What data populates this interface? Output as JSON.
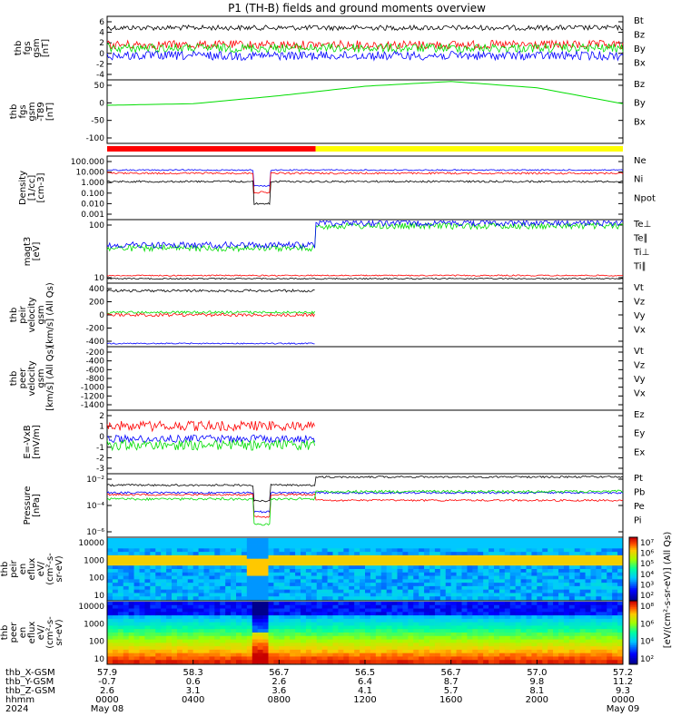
{
  "title": "P1 (TH-B) fields and ground moments overview",
  "colors": {
    "black": "#000000",
    "red": "#ff0000",
    "green": "#00dd00",
    "blue": "#0000ff",
    "yellow": "#ffff00"
  },
  "panels": [
    {
      "id": "bfield",
      "ylabel": [
        "thb",
        "fgs",
        "gsm",
        "[nT]"
      ],
      "yticks": [
        "6",
        "4",
        "2",
        "0",
        "-2",
        "-4"
      ],
      "ylim": [
        -6,
        7
      ],
      "legend": [
        {
          "text": "Bt",
          "color": "black"
        },
        {
          "text": "Bz",
          "color": "red"
        },
        {
          "text": "By",
          "color": "green"
        },
        {
          "text": "Bx",
          "color": "blue"
        }
      ]
    },
    {
      "id": "bfield_model",
      "ylabel": [
        "thb",
        "fgs",
        "gsm",
        "-T89",
        "[nT]"
      ],
      "yticks": [
        "50",
        "0",
        "-50",
        "-100"
      ],
      "ylim": [
        -120,
        80
      ],
      "legend": [
        {
          "text": "Bz",
          "color": "red"
        },
        {
          "text": "By",
          "color": "green"
        },
        {
          "text": "Bx",
          "color": "blue"
        }
      ]
    },
    {
      "id": "density",
      "ylabel": [
        "Density",
        "[1/cc]",
        "[cm-3]"
      ],
      "yticks": [
        "100.000",
        "10.000",
        "1.000",
        "0.100",
        "0.010",
        "0.001"
      ],
      "log": true,
      "legend": [
        {
          "text": "Ne",
          "color": "red"
        },
        {
          "text": "Ni",
          "color": "black"
        },
        {
          "text": "Npot",
          "color": "blue"
        }
      ]
    },
    {
      "id": "temperature",
      "ylabel": [
        "magt3",
        "[eV]"
      ],
      "yticks": [
        "100",
        "10"
      ],
      "log": true,
      "legend": [
        {
          "text": "Te⊥",
          "color": "red"
        },
        {
          "text": "Te∥",
          "color": "black"
        },
        {
          "text": "Ti⊥",
          "color": "red"
        },
        {
          "text": "Ti∥",
          "color": "green"
        }
      ]
    },
    {
      "id": "ion_velocity",
      "ylabel": [
        "thb",
        "peir",
        "velocity",
        "gsm",
        "[km/s] (All Qs)"
      ],
      "yticks": [
        "400",
        "200",
        "0",
        "-200",
        "-400"
      ],
      "ylim": [
        -500,
        500
      ],
      "legend": [
        {
          "text": "Vt",
          "color": "black"
        },
        {
          "text": "Vz",
          "color": "red"
        },
        {
          "text": "Vy",
          "color": "green"
        },
        {
          "text": "Vx",
          "color": "blue"
        }
      ]
    },
    {
      "id": "electron_velocity",
      "ylabel": [
        "thb",
        "peer",
        "velocity",
        "gsm",
        "[km/s] (All Qs)"
      ],
      "yticks": [
        "-200",
        "-400",
        "-600",
        "-800",
        "-1000",
        "-1200",
        "-1400"
      ],
      "ylim": [
        -1500,
        -100
      ],
      "legend": [
        {
          "text": "Vt",
          "color": "black"
        },
        {
          "text": "Vz",
          "color": "red"
        },
        {
          "text": "Vy",
          "color": "green"
        },
        {
          "text": "Vx",
          "color": "blue"
        }
      ]
    },
    {
      "id": "efield",
      "ylabel": [
        "E=-VxB",
        "[mV/m]"
      ],
      "yticks": [
        "2",
        "1",
        "0",
        "-1",
        "-2",
        "-3"
      ],
      "ylim": [
        -3.5,
        3
      ],
      "legend": [
        {
          "text": "Ez",
          "color": "red"
        },
        {
          "text": "Ey",
          "color": "green"
        },
        {
          "text": "Ex",
          "color": "blue"
        }
      ]
    },
    {
      "id": "pressure",
      "ylabel": [
        "Pressure",
        "[nPa]"
      ],
      "yticks": [
        "10⁻²",
        "10⁻⁴",
        "10⁻⁶"
      ],
      "log": true,
      "legend": [
        {
          "text": "Pt",
          "color": "black"
        },
        {
          "text": "Pb",
          "color": "red"
        },
        {
          "text": "Pe",
          "color": "green"
        },
        {
          "text": "Pi",
          "color": "blue"
        }
      ]
    },
    {
      "id": "ion_spec",
      "ylabel": [
        "thb",
        "peir",
        "en",
        "eflux",
        "eV/",
        "(cm²-s-",
        "sr-eV)"
      ],
      "yticks": [
        "10000",
        "1000",
        "100",
        "10"
      ]
    },
    {
      "id": "electron_spec",
      "ylabel": [
        "thb",
        "peer",
        "en",
        "eflux",
        "eV/",
        "(cm²-s-",
        "sr-eV)"
      ],
      "yticks": [
        "10000",
        "1000",
        "100",
        "10"
      ]
    }
  ],
  "colorbar": {
    "label": "[eV/(cm²-s-sr-eV)] (All Qs)",
    "ion_ticks": [
      "10⁷",
      "10⁶",
      "10⁵",
      "10⁴",
      "10³",
      "10²"
    ],
    "electron_ticks": [
      "10⁸",
      "10⁶",
      "10⁴",
      "10²"
    ]
  },
  "xaxis": {
    "row_labels": [
      "thb_X-GSM",
      "thb_Y-GSM",
      "thb_Z-GSM",
      "hhmm",
      "2024"
    ],
    "columns": [
      {
        "x": "57.9",
        "y": "-0.7",
        "z": "2.6",
        "time": "0000",
        "date": "May 08"
      },
      {
        "x": "58.3",
        "y": "0.6",
        "z": "3.1",
        "time": "0400",
        "date": ""
      },
      {
        "x": "56.7",
        "y": "2.6",
        "z": "3.6",
        "time": "0800",
        "date": ""
      },
      {
        "x": "56.5",
        "y": "6.4",
        "z": "4.1",
        "time": "1200",
        "date": ""
      },
      {
        "x": "56.7",
        "y": "8.7",
        "z": "5.7",
        "time": "1600",
        "date": ""
      },
      {
        "x": "57.0",
        "y": "9.8",
        "z": "8.1",
        "time": "2000",
        "date": ""
      },
      {
        "x": "57.2",
        "y": "11.2",
        "z": "9.3",
        "time": "0000",
        "date": "May 09"
      }
    ]
  },
  "chart_data": {
    "type": "line",
    "x_unit": "hours since 2024-05-08 00:00",
    "x_range": [
      "2024-05-08 00:00",
      "2024-05-09 00:00"
    ],
    "series_summary": [
      {
        "panel": "bfield",
        "series": [
          {
            "name": "Bt",
            "approx": 4
          },
          {
            "name": "Bz",
            "approx": 1
          },
          {
            "name": "By",
            "approx": 0.5
          },
          {
            "name": "Bx",
            "approx": -1.5
          }
        ]
      },
      {
        "panel": "bfield_model",
        "series": [
          {
            "name": "By",
            "x_hours": [
              0,
              4,
              8,
              12,
              16,
              20,
              24
            ],
            "values": [
              0,
              5,
              30,
              60,
              75,
              55,
              5
            ]
          }
        ]
      }
    ],
    "mode_bar": [
      {
        "from_hour": 0,
        "to_hour": 9.7,
        "color": "red"
      },
      {
        "from_hour": 9.7,
        "to_hour": 24,
        "color": "yellow"
      }
    ]
  }
}
